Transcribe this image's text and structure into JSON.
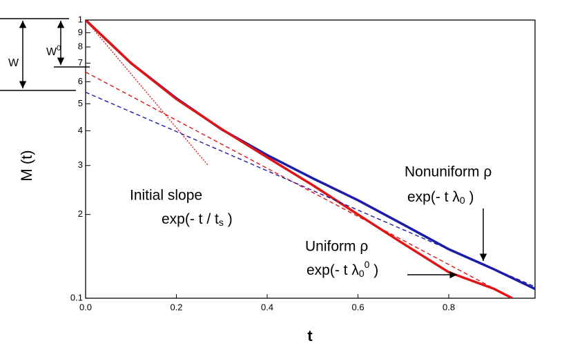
{
  "chart_data": {
    "type": "line",
    "x_label": "t",
    "y_label": "M (t)",
    "xlim": [
      0,
      0.99
    ],
    "xticks": [
      {
        "value": 0,
        "label": "0.0"
      },
      0.2,
      0.4,
      0.6,
      0.8
    ],
    "ylim": [
      0.1,
      1
    ],
    "log_y": true,
    "yticks": [
      0.1,
      {
        "value": 0.2,
        "label": "2"
      },
      {
        "value": 0.3,
        "label": "3"
      },
      {
        "value": 0.4,
        "label": "4"
      },
      {
        "value": 0.5,
        "label": "5"
      },
      {
        "value": 0.6,
        "label": "6"
      },
      {
        "value": 0.7,
        "label": "7"
      },
      {
        "value": 0.8,
        "label": "8"
      },
      {
        "value": 0.9,
        "label": "9"
      },
      1
    ],
    "series": [
      {
        "color": "#1c1caa",
        "style": "solid",
        "x": [
          0,
          0.1,
          0.2,
          0.3,
          0.4,
          0.5,
          0.6,
          0.7,
          0.8,
          0.9,
          0.99
        ],
        "values": [
          1,
          0.7,
          0.523,
          0.404,
          0.327,
          0.27,
          0.225,
          0.184,
          0.15,
          0.127,
          0.108
        ]
      },
      {
        "color": "#e01414",
        "style": "solid",
        "x": [
          0,
          0.1,
          0.2,
          0.3,
          0.4,
          0.5,
          0.6,
          0.7,
          0.8,
          0.9,
          0.94
        ],
        "values": [
          1,
          0.7,
          0.52,
          0.405,
          0.321,
          0.255,
          0.2,
          0.157,
          0.124,
          0.108,
          0.1
        ]
      },
      {
        "color": "#e01414",
        "style": "dashed",
        "x": [
          0,
          0.94
        ],
        "values": [
          0.65,
          0.1
        ]
      },
      {
        "color": "#1c1caa",
        "style": "dashed",
        "x": [
          0,
          0.99
        ],
        "values": [
          0.55,
          0.11
        ]
      },
      {
        "color": "#e01414",
        "style": "dotted",
        "x": [
          0,
          0.27
        ],
        "values": [
          1,
          0.3
        ]
      }
    ],
    "annotations": {
      "initial": "Initial slope",
      "initial_formula": [
        "exp(- t  / t",
        "s",
        " )"
      ],
      "uniform": "Uniform ρ",
      "uniform_formula": [
        "exp(- t λ",
        "0",
        "0",
        " )"
      ],
      "nonuniform": "Nonuniform ρ",
      "nonuniform_formula": [
        "exp(- t λ",
        "0",
        " )"
      ]
    },
    "inset": {
      "w": "W",
      "w0": [
        "W",
        "0"
      ]
    }
  }
}
